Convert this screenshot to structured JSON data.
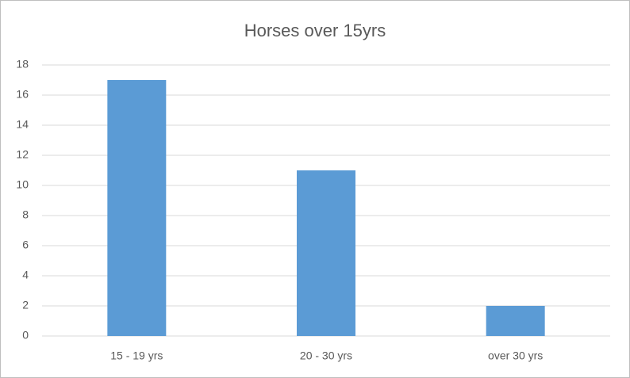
{
  "chart_data": {
    "type": "bar",
    "title": "Horses over 15yrs",
    "categories": [
      "15 - 19 yrs",
      "20 - 30 yrs",
      "over 30 yrs"
    ],
    "values": [
      17,
      11,
      2
    ],
    "color": "#5b9bd5",
    "ylim": [
      0,
      18
    ],
    "yticks": [
      0,
      2,
      4,
      6,
      8,
      10,
      12,
      14,
      16,
      18
    ],
    "grid": true
  }
}
